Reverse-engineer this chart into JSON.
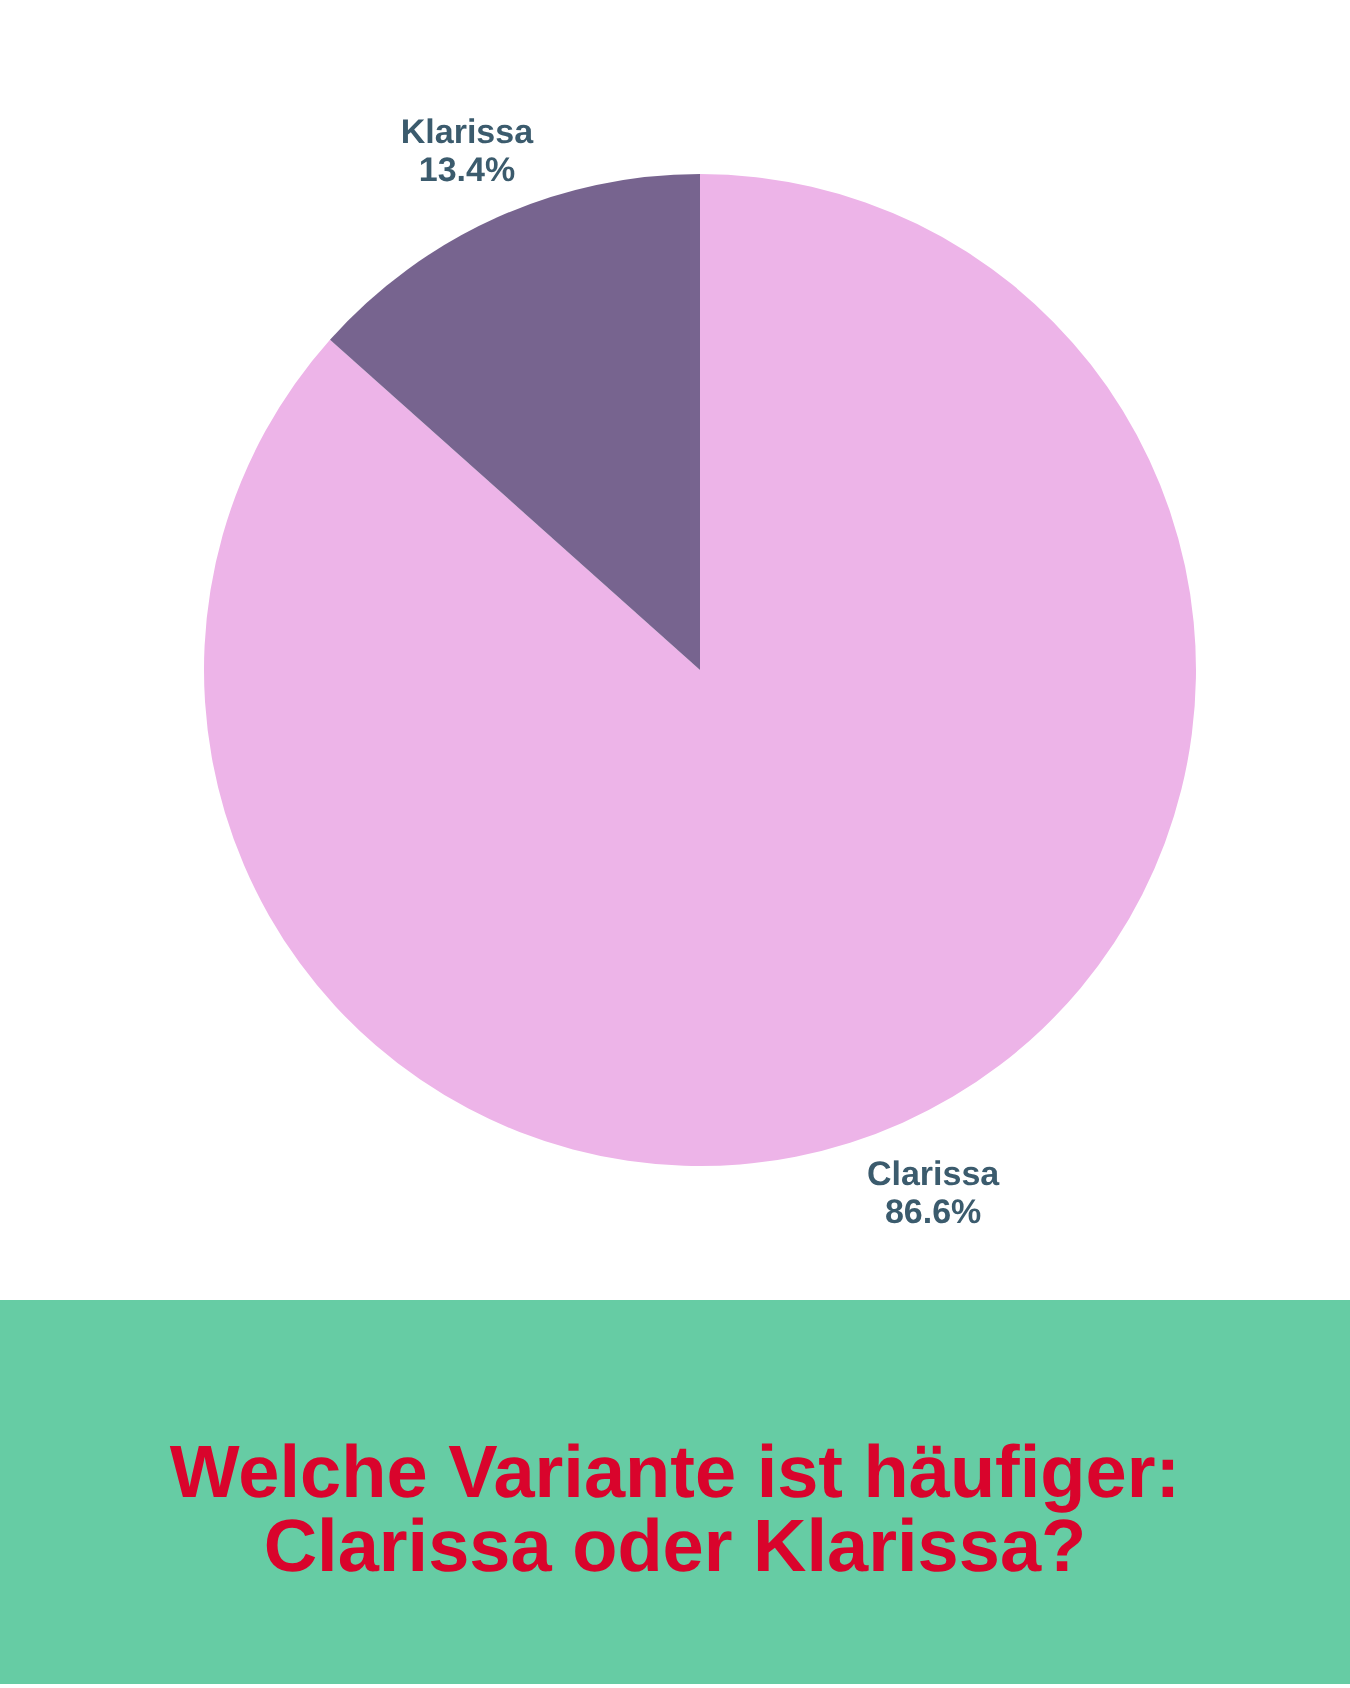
{
  "chart_data": {
    "type": "pie",
    "title": "Welche Variante ist häufiger: Clarissa oder Klarissa?",
    "categories": [
      "Clarissa",
      "Klarissa"
    ],
    "values": [
      86.6,
      13.4
    ],
    "colors": [
      "#edb4e8",
      "#77648f"
    ],
    "value_labels": [
      "86.6%",
      "13.4%"
    ],
    "legend": false
  }
}
